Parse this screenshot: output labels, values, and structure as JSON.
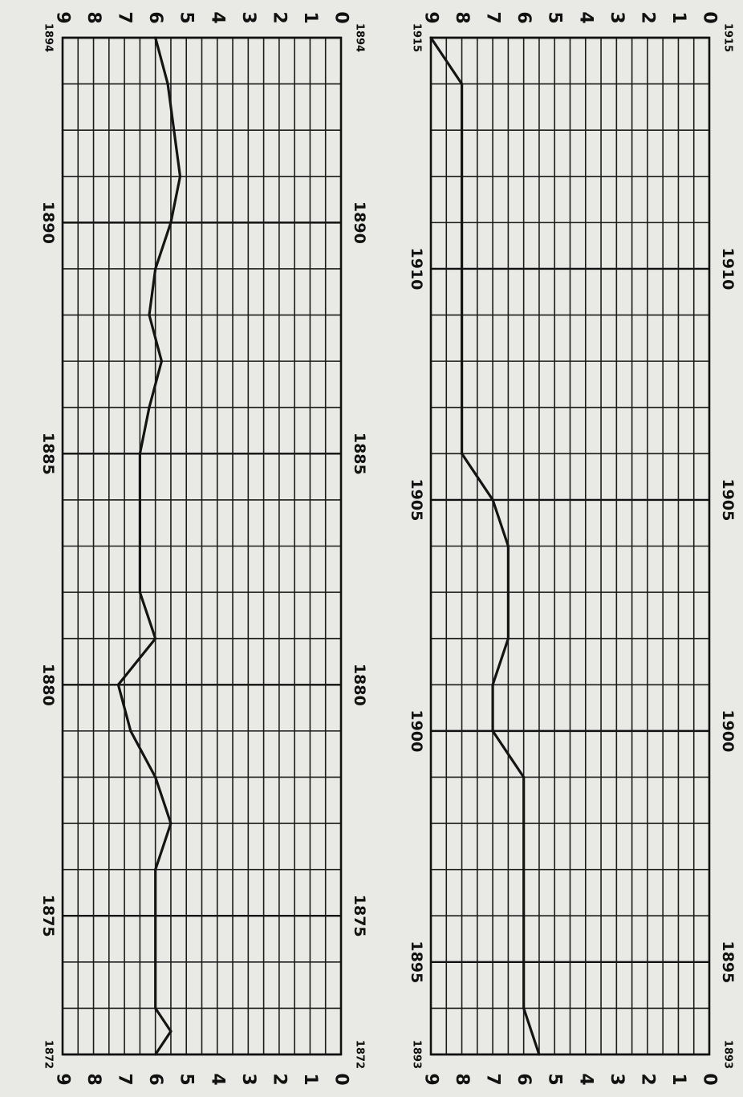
{
  "chart_data": [
    {
      "type": "line",
      "x_range": [
        1872,
        1894
      ],
      "ylim": [
        0,
        9
      ],
      "y_ticks": [
        0,
        1,
        2,
        3,
        4,
        5,
        6,
        7,
        8,
        9
      ],
      "x_tick_labels": [
        "1872",
        "1875",
        "1880",
        "1885",
        "1890",
        "1894"
      ],
      "x_tick_values": [
        1872,
        1875,
        1880,
        1885,
        1890,
        1894
      ],
      "grid": true,
      "orientation": "rotated 90° (years along page height, values across page width)",
      "series": [
        {
          "x": [
            1872,
            1872.5,
            1873,
            1874,
            1875,
            1876,
            1877,
            1878,
            1879,
            1880,
            1881,
            1882,
            1883,
            1884,
            1885,
            1886,
            1887,
            1888,
            1889,
            1890,
            1891,
            1892,
            1893,
            1894
          ],
          "values": [
            6,
            5.5,
            6,
            6,
            6,
            6,
            5.5,
            6,
            6.8,
            7.2,
            6,
            6.5,
            6.5,
            6.5,
            6.5,
            6.2,
            5.8,
            6.2,
            6,
            5.5,
            5.2,
            5.4,
            5.6,
            6
          ]
        }
      ]
    },
    {
      "type": "line",
      "x_range": [
        1893,
        1915
      ],
      "ylim": [
        0,
        9
      ],
      "y_ticks": [
        0,
        1,
        2,
        3,
        4,
        5,
        6,
        7,
        8,
        9
      ],
      "x_tick_labels": [
        "1893",
        "1895",
        "1900",
        "1905",
        "1910",
        "1915"
      ],
      "x_tick_values": [
        1893,
        1895,
        1900,
        1905,
        1910,
        1915
      ],
      "grid": true,
      "orientation": "rotated 90° (years along page height, values across page width)",
      "series": [
        {
          "x": [
            1893,
            1894,
            1895,
            1896,
            1897,
            1898,
            1899,
            1900,
            1901,
            1902,
            1903,
            1904,
            1905,
            1906,
            1907,
            1908,
            1909,
            1910,
            1911,
            1912,
            1913,
            1914,
            1915
          ],
          "values": [
            5.5,
            6,
            6,
            6,
            6,
            6,
            6,
            7,
            7,
            6.5,
            6.5,
            6.5,
            7,
            8,
            8,
            8,
            8,
            8,
            8,
            8,
            8,
            8,
            9
          ]
        }
      ]
    }
  ]
}
